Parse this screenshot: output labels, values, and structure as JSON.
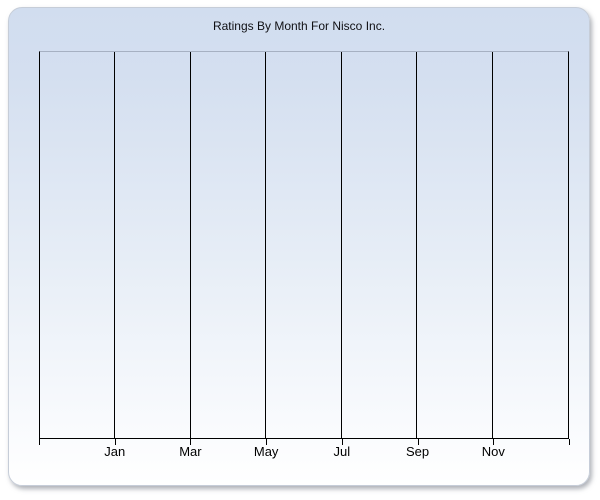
{
  "panel": {
    "title": "Ratings By Month For Nisco Inc."
  },
  "chart_data": {
    "type": "line",
    "title": "Ratings By Month For Nisco Inc.",
    "x_tick_labels": [
      "Jan",
      "Mar",
      "May",
      "Jul",
      "Sep",
      "Nov"
    ],
    "y_tick_labels": [],
    "series": [],
    "xlabel": "",
    "ylabel": "",
    "grid": "vertical gridlines only, 8 lines including plot edges",
    "legend_position": "none"
  },
  "colors": {
    "panel_top": "#d1ddef",
    "panel_bottom": "#ffffff",
    "panel_border": "#c6cdd8",
    "plot_top_border": "#a6b0c2",
    "grid_color": "#000000",
    "axis_color": "#000000",
    "title_color": "#101014",
    "label_color": "#000000"
  }
}
